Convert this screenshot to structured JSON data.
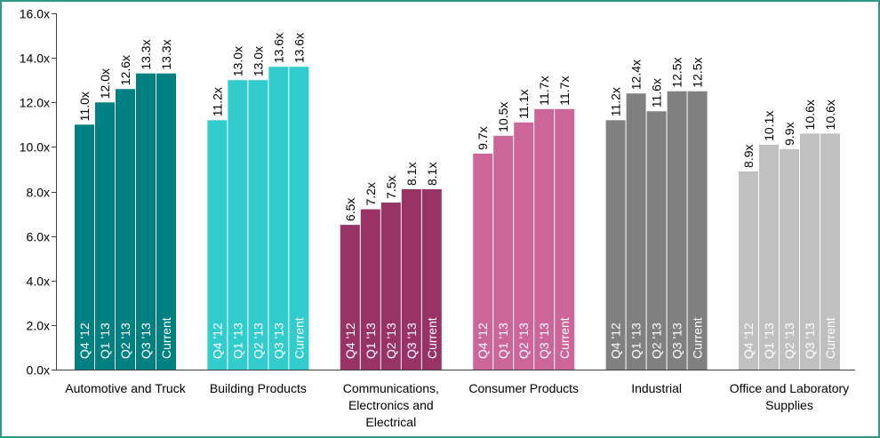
{
  "chart_data": {
    "type": "bar",
    "categories": [
      "Automotive and Truck",
      "Building Products",
      "Communications, Electronics and Electrical",
      "Consumer Products",
      "Industrial",
      "Office and Laboratory Supplies"
    ],
    "category_colors": [
      "#008080",
      "#33cccc",
      "#993366",
      "#cc6699",
      "#808080",
      "#c0c0c0"
    ],
    "series": [
      {
        "name": "Q4 '12",
        "values": [
          11.0,
          11.2,
          6.5,
          9.7,
          11.2,
          8.9
        ],
        "labels": [
          "11.0x",
          "11.2x",
          "6.5x",
          "9.7x",
          "11.2x",
          "8.9x"
        ]
      },
      {
        "name": "Q1 '13",
        "values": [
          12.0,
          13.0,
          7.2,
          10.5,
          12.4,
          10.1
        ],
        "labels": [
          "12.0x",
          "13.0x",
          "7.2x",
          "10.5x",
          "12.4x",
          "10.1x"
        ]
      },
      {
        "name": "Q2 '13",
        "values": [
          12.6,
          13.0,
          7.5,
          11.1,
          11.6,
          9.9
        ],
        "labels": [
          "12.6x",
          "13.0x",
          "7.5x",
          "11.1x",
          "11.6x",
          "9.9x"
        ]
      },
      {
        "name": "Q3 '13",
        "values": [
          13.3,
          13.6,
          8.1,
          11.7,
          12.5,
          10.6
        ],
        "labels": [
          "13.3x",
          "13.6x",
          "8.1x",
          "11.7x",
          "12.5x",
          "10.6x"
        ]
      },
      {
        "name": "Current",
        "values": [
          13.3,
          13.6,
          8.1,
          11.7,
          12.5,
          10.6
        ],
        "labels": [
          "13.3x",
          "13.6x",
          "8.1x",
          "11.7x",
          "12.5x",
          "10.6x"
        ]
      }
    ],
    "ylim": [
      0,
      16
    ],
    "y_axis": {
      "ticks": [
        0,
        2,
        4,
        6,
        8,
        10,
        12,
        14,
        16
      ],
      "tick_labels": [
        "0.0x",
        "2.0x",
        "4.0x",
        "6.0x",
        "8.0x",
        "10.0x",
        "12.0x",
        "14.0x",
        "16.0x"
      ]
    },
    "value_label_color": "#000000",
    "series_label_color": "#ffffff",
    "axis_color": "#404040",
    "grid": false,
    "legend": "none"
  },
  "frame_color": "#2f9b86"
}
